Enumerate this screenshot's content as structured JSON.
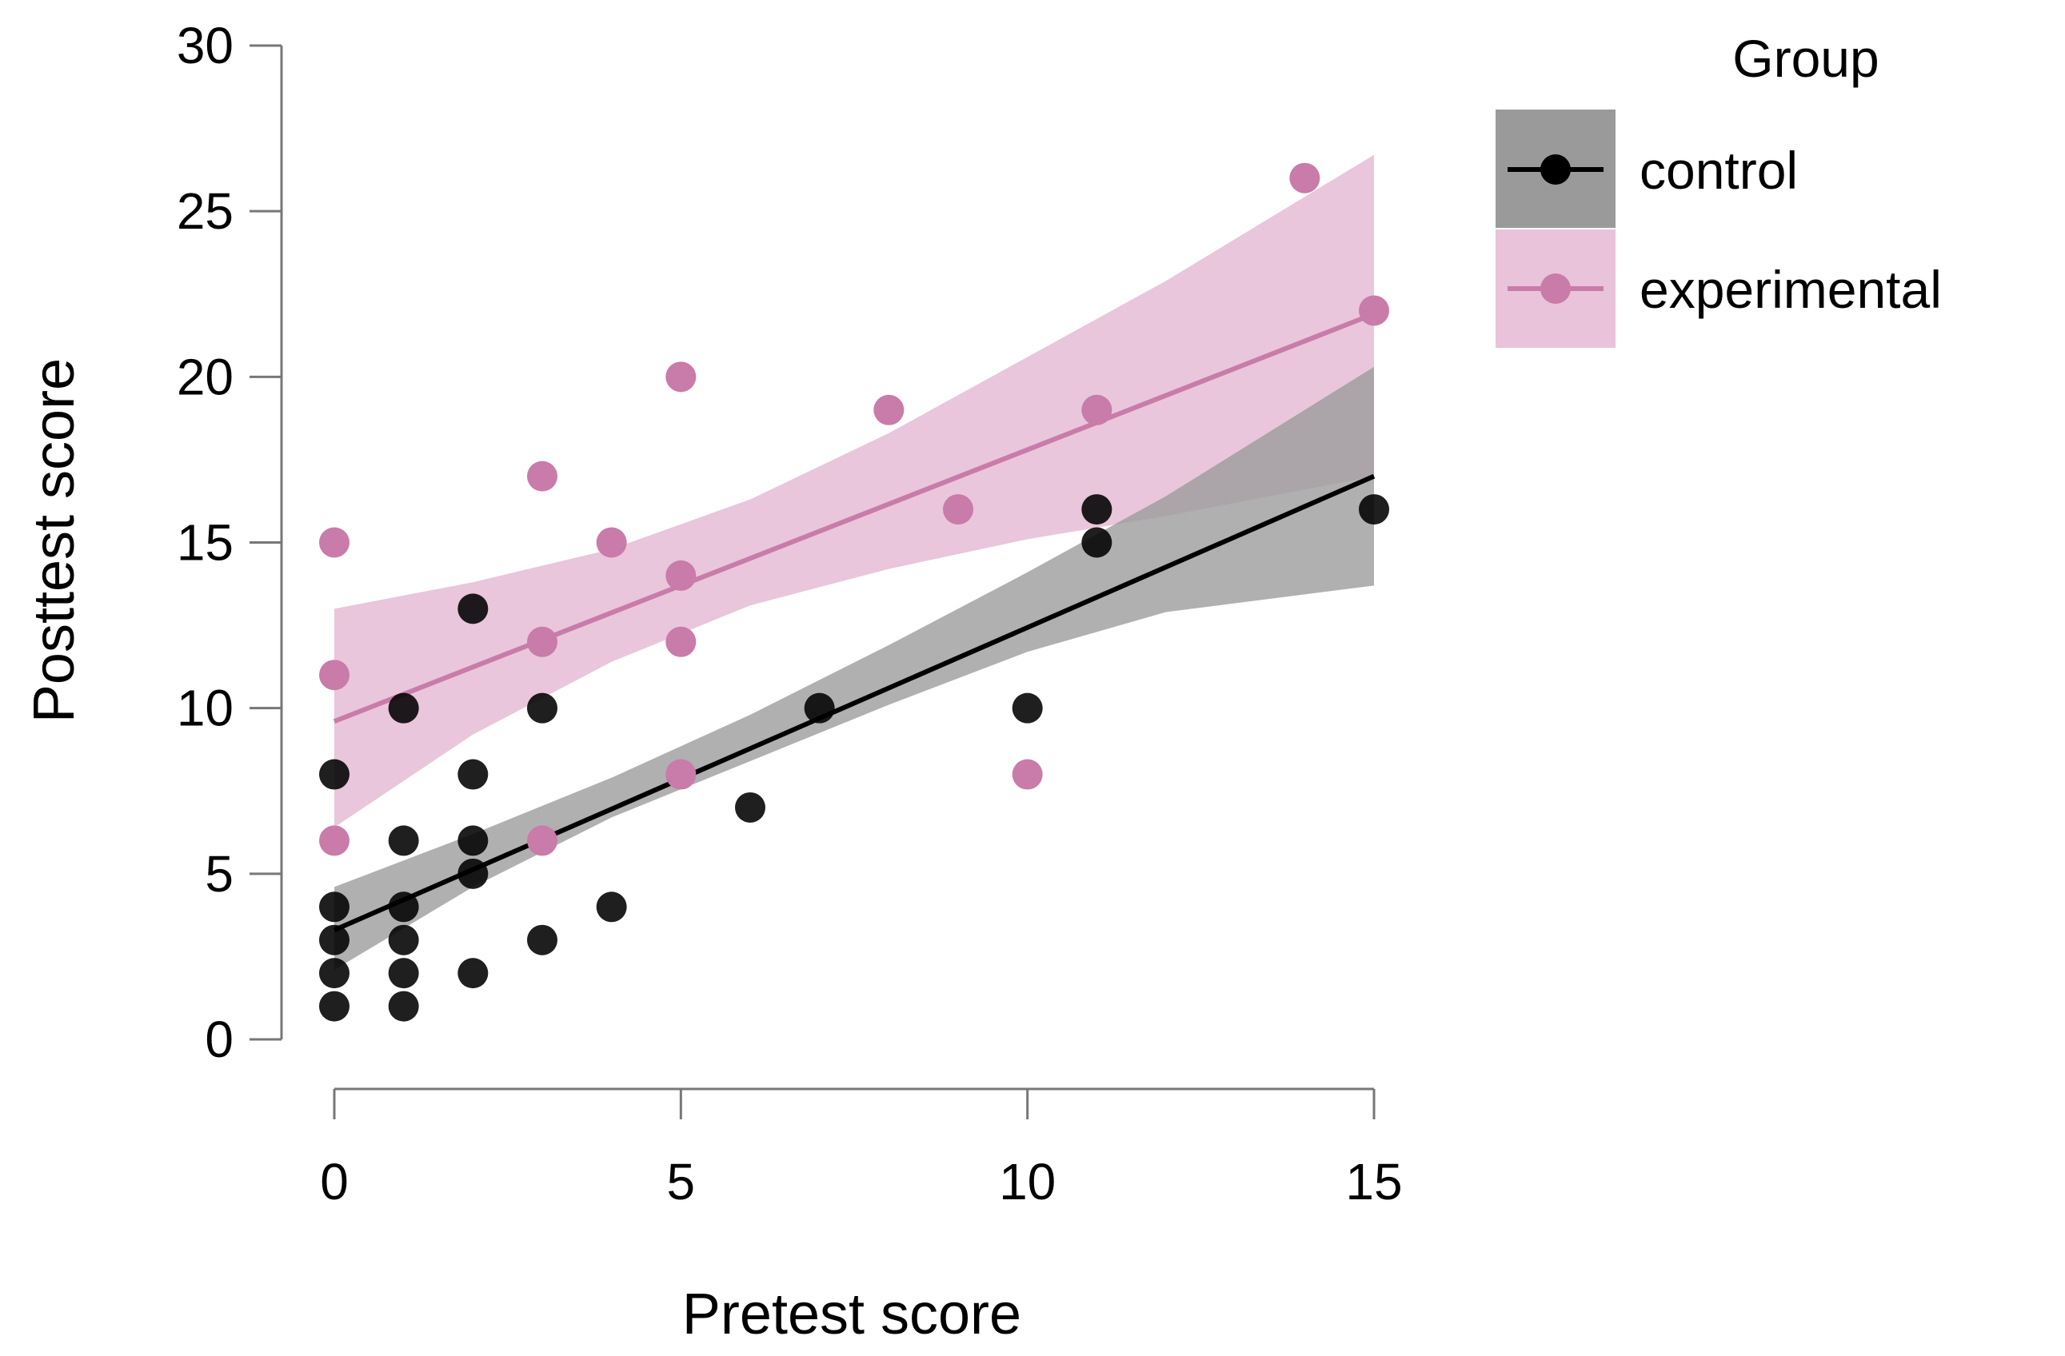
{
  "chart_data": {
    "type": "scatter",
    "xlabel": "Pretest score",
    "ylabel": "Posttest score",
    "xlim": [
      0,
      15
    ],
    "ylim": [
      0,
      30
    ],
    "xticks": [
      0,
      5,
      10,
      15
    ],
    "yticks": [
      0,
      5,
      10,
      15,
      20,
      25,
      30
    ],
    "xtick_labels": [
      "0",
      "5",
      "10",
      "15"
    ],
    "ytick_labels": [
      "0",
      "5",
      "10",
      "15",
      "20",
      "25",
      "30"
    ],
    "grid": false,
    "legend": {
      "title": "Group",
      "position": "right",
      "entries": [
        "control",
        "experimental"
      ]
    },
    "series": [
      {
        "name": "control",
        "color": "#000000",
        "band_color": "#9a9a9a",
        "points": [
          [
            0,
            1
          ],
          [
            0,
            2
          ],
          [
            0,
            3
          ],
          [
            0,
            4
          ],
          [
            0,
            8
          ],
          [
            1,
            1
          ],
          [
            1,
            2
          ],
          [
            1,
            3
          ],
          [
            1,
            4
          ],
          [
            1,
            6
          ],
          [
            1,
            10
          ],
          [
            2,
            2
          ],
          [
            2,
            5
          ],
          [
            2,
            6
          ],
          [
            2,
            8
          ],
          [
            2,
            13
          ],
          [
            3,
            3
          ],
          [
            3,
            10
          ],
          [
            4,
            4
          ],
          [
            6,
            7
          ],
          [
            7,
            10
          ],
          [
            10,
            10
          ],
          [
            11,
            15
          ],
          [
            11,
            16
          ],
          [
            15,
            16
          ]
        ],
        "fit": {
          "x": [
            0,
            15
          ],
          "y": [
            3.3,
            17.0
          ]
        },
        "band": {
          "x": [
            0,
            2,
            4,
            6,
            8,
            10,
            12,
            15
          ],
          "lower": [
            2.1,
            4.6,
            6.7,
            8.4,
            10.1,
            11.7,
            12.9,
            13.7
          ],
          "upper": [
            4.6,
            6.2,
            7.9,
            9.8,
            11.9,
            14.1,
            16.4,
            20.3
          ]
        }
      },
      {
        "name": "experimental",
        "color": "#c97ba9",
        "band_color": "#e8c3d9",
        "points": [
          [
            0,
            6
          ],
          [
            0,
            11
          ],
          [
            0,
            15
          ],
          [
            3,
            6
          ],
          [
            3,
            12
          ],
          [
            3,
            17
          ],
          [
            4,
            15
          ],
          [
            5,
            8
          ],
          [
            5,
            12
          ],
          [
            5,
            14
          ],
          [
            5,
            20
          ],
          [
            8,
            19
          ],
          [
            9,
            16
          ],
          [
            10,
            8
          ],
          [
            11,
            19
          ],
          [
            14,
            26
          ],
          [
            15,
            22
          ]
        ],
        "fit": {
          "x": [
            0,
            15
          ],
          "y": [
            9.6,
            21.9
          ]
        },
        "band": {
          "x": [
            0,
            2,
            4,
            6,
            8,
            10,
            12,
            15
          ],
          "lower": [
            6.4,
            9.2,
            11.4,
            13.1,
            14.2,
            15.1,
            15.8,
            17.0
          ],
          "upper": [
            13.0,
            13.8,
            14.8,
            16.3,
            18.3,
            20.6,
            22.9,
            26.7
          ]
        }
      }
    ]
  }
}
